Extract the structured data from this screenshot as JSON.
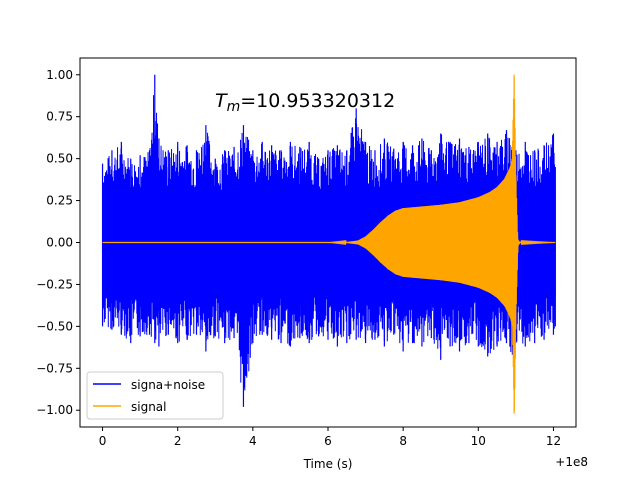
{
  "chart_data": {
    "type": "line",
    "title": "",
    "xlabel": "Time (s)",
    "ylabel": "",
    "x_offset_label": "+1e8",
    "xlim": [
      -0.6,
      12.6
    ],
    "ylim": [
      -1.1,
      1.1
    ],
    "xticks": [
      0,
      2,
      4,
      6,
      8,
      10,
      12
    ],
    "xtick_labels": [
      "0",
      "2",
      "4",
      "6",
      "8",
      "10",
      "12"
    ],
    "yticks": [
      -1.0,
      -0.75,
      -0.5,
      -0.25,
      0.0,
      0.25,
      0.5,
      0.75,
      1.0
    ],
    "ytick_labels": [
      "−1.00",
      "−0.75",
      "−0.50",
      "−0.25",
      "0.00",
      "0.25",
      "0.50",
      "0.75",
      "1.00"
    ],
    "grid": false,
    "legend_placement": "lower-left",
    "annotation": {
      "math_symbol": "T",
      "math_subscript": "m",
      "value_text": "=10.953320312"
    },
    "series": [
      {
        "name": "signa+noise",
        "color": "#0000ff",
        "x": [
          0,
          0.25,
          0.5,
          0.75,
          1,
          1.25,
          1.39,
          1.5,
          1.75,
          2,
          2.25,
          2.5,
          2.75,
          3,
          3.25,
          3.5,
          3.75,
          4,
          4.25,
          4.5,
          4.75,
          5,
          5.25,
          5.5,
          5.75,
          6,
          6.25,
          6.5,
          6.75,
          7,
          7.25,
          7.5,
          7.75,
          8,
          8.25,
          8.5,
          8.75,
          9,
          9.25,
          9.5,
          9.75,
          10,
          10.25,
          10.5,
          10.75,
          10.95,
          11,
          11.25,
          11.5,
          11.75,
          12,
          12.05
        ],
        "upper": [
          0.47,
          0.55,
          0.6,
          0.5,
          0.52,
          0.55,
          1.0,
          0.62,
          0.55,
          0.6,
          0.58,
          0.55,
          0.7,
          0.5,
          0.55,
          0.57,
          0.7,
          0.55,
          0.6,
          0.58,
          0.55,
          0.6,
          0.57,
          0.6,
          0.5,
          0.55,
          0.58,
          0.55,
          0.8,
          0.6,
          0.55,
          0.62,
          0.56,
          0.6,
          0.58,
          0.62,
          0.55,
          0.65,
          0.6,
          0.62,
          0.57,
          0.6,
          0.65,
          0.6,
          0.67,
          0.7,
          0.55,
          0.6,
          0.55,
          0.58,
          0.65,
          0.45
        ],
        "lower": [
          -0.5,
          -0.52,
          -0.55,
          -0.6,
          -0.56,
          -0.55,
          -0.6,
          -0.62,
          -0.55,
          -0.6,
          -0.58,
          -0.55,
          -0.65,
          -0.56,
          -0.6,
          -0.57,
          -0.98,
          -0.6,
          -0.55,
          -0.58,
          -0.6,
          -0.62,
          -0.57,
          -0.6,
          -0.56,
          -0.58,
          -0.62,
          -0.6,
          -0.58,
          -0.6,
          -0.58,
          -0.62,
          -0.55,
          -0.65,
          -0.6,
          -0.62,
          -0.57,
          -0.7,
          -0.62,
          -0.65,
          -0.6,
          -0.62,
          -0.68,
          -0.62,
          -0.6,
          -0.88,
          -0.6,
          -0.62,
          -0.6,
          -0.58,
          -0.55,
          -0.5
        ]
      },
      {
        "name": "signal",
        "color": "#ffa500",
        "x": [
          0,
          6,
          6.5,
          6.8,
          7,
          7.2,
          7.4,
          7.6,
          7.8,
          8,
          8.25,
          8.5,
          9,
          9.5,
          10,
          10.3,
          10.5,
          10.7,
          10.85,
          10.9,
          10.953,
          11.0,
          11.05,
          11.1,
          12.05
        ],
        "upper": [
          0,
          0,
          0.003,
          0.012,
          0.035,
          0.075,
          0.12,
          0.16,
          0.19,
          0.205,
          0.21,
          0.215,
          0.225,
          0.24,
          0.27,
          0.3,
          0.33,
          0.38,
          0.45,
          0.5,
          1.0,
          0.4,
          0.02,
          0.003,
          0
        ],
        "lower": [
          0,
          0,
          -0.003,
          -0.012,
          -0.035,
          -0.075,
          -0.12,
          -0.16,
          -0.19,
          -0.205,
          -0.21,
          -0.215,
          -0.225,
          -0.24,
          -0.27,
          -0.3,
          -0.33,
          -0.38,
          -0.45,
          -0.5,
          -1.02,
          -0.4,
          -0.02,
          -0.003,
          0
        ]
      }
    ]
  }
}
